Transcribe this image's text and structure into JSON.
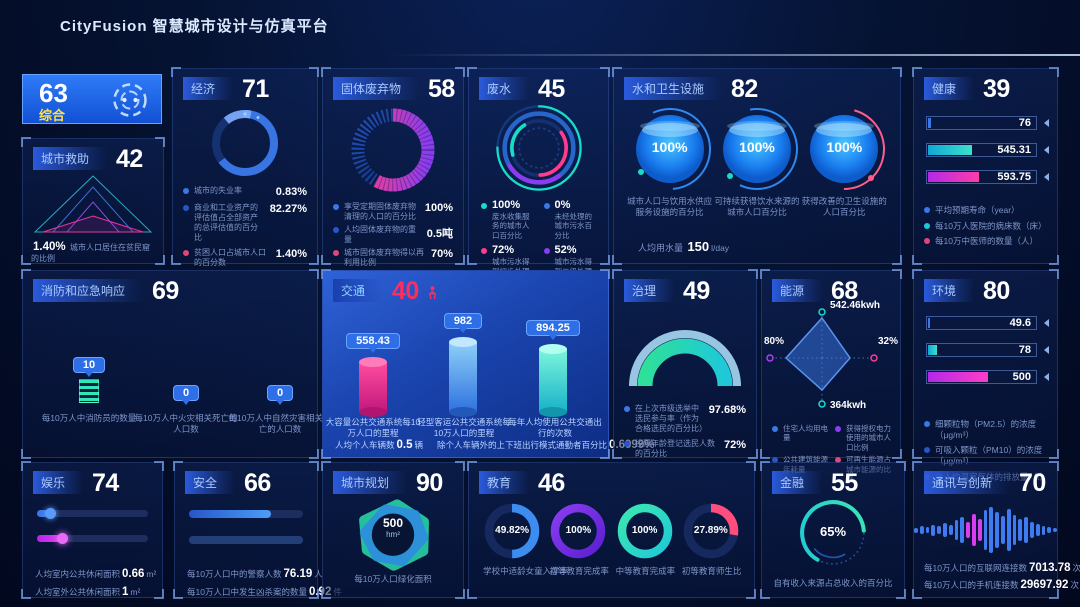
{
  "header": {
    "title": "CityFusion 智慧城市设计与仿真平台"
  },
  "colors": {
    "accent": "#2e6fe8",
    "teal": "#19dcc8",
    "magenta": "#ff3d8c",
    "purple": "#8a3df0",
    "alert_red": "#ff2d5e",
    "highlight_yellow": "#ffe14d"
  },
  "overview": {
    "value": "63",
    "label": "综合"
  },
  "city_aid": {
    "title": "城市救助",
    "score": "42",
    "stat_value": "1.40%",
    "stat_label": "城市人口居住在贫民窟的比例"
  },
  "economy": {
    "title": "经济",
    "score": "71",
    "items": [
      {
        "label": "城市的失业率",
        "value": "0.83%"
      },
      {
        "label": "商业和工业资产的评估值占全部资产的总评估值的百分比",
        "value": "82.27%"
      },
      {
        "label": "贫困人口占城市人口的百分数",
        "value": "1.40%"
      }
    ]
  },
  "solid_waste": {
    "title": "固体废弃物",
    "score": "58",
    "items": [
      {
        "label": "享受定期固体废弃物清理的人口的百分比",
        "value": "100%"
      },
      {
        "label": "人均固体废弃物的重量",
        "value": "0.5吨"
      },
      {
        "label": "城市固体废弃物得以再利用比例",
        "value": "70%"
      }
    ]
  },
  "waste_water": {
    "title": "废水",
    "score": "45",
    "items": [
      {
        "value": "100%",
        "label": "废水收集服务的城市人口百分比"
      },
      {
        "value": "0%",
        "label": "未经处理的城市污水百分比"
      },
      {
        "value": "72%",
        "label": "城市污水得到初步处理的比例"
      },
      {
        "value": "52%",
        "label": "城市污水得到二级处理的比例"
      }
    ]
  },
  "water_sanitation": {
    "title": "水和卫生设施",
    "score": "82",
    "circles": [
      {
        "value": "100%",
        "label": "城市人口与饮用水供应服务设施的百分比"
      },
      {
        "value": "100%",
        "label": "可持续获得饮水来源的城市人口百分比"
      },
      {
        "value": "100%",
        "label": "获得改善的卫生设施的人口百分比"
      }
    ],
    "usage_label": "人均用水量",
    "usage_value": "150",
    "usage_unit": "l/day"
  },
  "health": {
    "title": "健康",
    "score": "39",
    "bars": [
      "76",
      "545.31",
      "593.75"
    ],
    "legend": [
      "平均预期寿命（year）",
      "每10万人医院的病床数（床）",
      "每10万中医师的数量（人）"
    ]
  },
  "fire": {
    "title": "消防和应急响应",
    "score": "69",
    "items": [
      {
        "value": "10",
        "label": "每10万人中消防员的数量"
      },
      {
        "value": "0",
        "label": "每10万人中火灾相关死亡的人口数"
      },
      {
        "value": "0",
        "label": "每10万人中自然灾害相关死亡的人口数"
      }
    ]
  },
  "traffic": {
    "title": "交通",
    "score": "40",
    "bars": [
      {
        "value": "558.43",
        "label": "大容量公共交通系统每10万人口的里程"
      },
      {
        "value": "982",
        "label": "轻型客运公共交通系统每10万人口的里程"
      },
      {
        "value": "894.25",
        "label": "每年人均使用公共交通出行的次数"
      }
    ],
    "footnotes": [
      {
        "label": "人均个人车辆数",
        "value": "0.5",
        "unit": "辆"
      },
      {
        "label": "除个人车辆外的上下班出行模式通勤者百分比",
        "value": "0.6999%",
        "unit": ""
      }
    ]
  },
  "governance": {
    "title": "治理",
    "score": "49",
    "items": [
      {
        "label": "在上次市级选举中选民参与率（作为合格选民的百分比）",
        "value": "97.68%"
      },
      {
        "label": "投票年龄登记选民人数的百分比",
        "value": "72%"
      }
    ]
  },
  "energy": {
    "title": "能源",
    "score": "68",
    "axis": {
      "top": "542.46kwh",
      "right": "32%",
      "bottom": "364kwh",
      "left": "80%"
    },
    "legend": [
      "住宅人均用电量",
      "获得授权电力使用的城市人口比例",
      "公共建筑能源年耗量",
      "可再生能源占城市能源的比重"
    ]
  },
  "environment": {
    "title": "环境",
    "score": "80",
    "bars": [
      "49.6",
      "78",
      "500"
    ],
    "legend": [
      "细颗粒物（PM2.5）的浓度（μg/m³）",
      "可吸入颗粒（PM10）的浓度（μg/m³）",
      "年人均温室气体的排放量（t）"
    ]
  },
  "recreation": {
    "title": "娱乐",
    "score": "74",
    "items": [
      {
        "label": "人均室内公共休闲面积",
        "value": "0.66",
        "unit": "m²"
      },
      {
        "label": "人均室外公共休闲面积",
        "value": "1",
        "unit": "m²"
      }
    ]
  },
  "safety": {
    "title": "安全",
    "score": "66",
    "items": [
      {
        "label": "每10万人口中的警察人数",
        "value": "76.19",
        "unit": "人"
      },
      {
        "label": "每10万人口中发生凶杀案的数量",
        "value": "0.92",
        "unit": "件"
      }
    ]
  },
  "urban_planning": {
    "title": "城市规划",
    "score": "90",
    "center_value": "500",
    "center_unit": "hm²",
    "label": "每10万人口绿化面积"
  },
  "education": {
    "title": "教育",
    "score": "46",
    "donuts": [
      {
        "value": "49.82%",
        "label": "学校中适龄女童入学率"
      },
      {
        "value": "100%",
        "label": "初等教育完成率"
      },
      {
        "value": "100%",
        "label": "中等教育完成率"
      },
      {
        "value": "27.89%",
        "label": "初等教育师生比"
      }
    ]
  },
  "finance": {
    "title": "金融",
    "score": "55",
    "gauge_value": "65%",
    "label": "自有收入来源占总收入的百分比"
  },
  "telecom": {
    "title": "通讯与创新",
    "score": "70",
    "waveform": [
      5,
      8,
      6,
      11,
      8,
      14,
      10,
      20,
      26,
      16,
      32,
      22,
      40,
      46,
      36,
      28,
      42,
      30,
      22,
      26,
      16,
      12,
      9,
      6,
      4
    ],
    "waveform_accents": [
      9,
      10,
      11
    ],
    "items": [
      {
        "label": "每10万人口的互联网连接数",
        "value": "7013.78",
        "unit": "次"
      },
      {
        "label": "每10万人口的手机连接数",
        "value": "29697.92",
        "unit": "次"
      }
    ]
  }
}
